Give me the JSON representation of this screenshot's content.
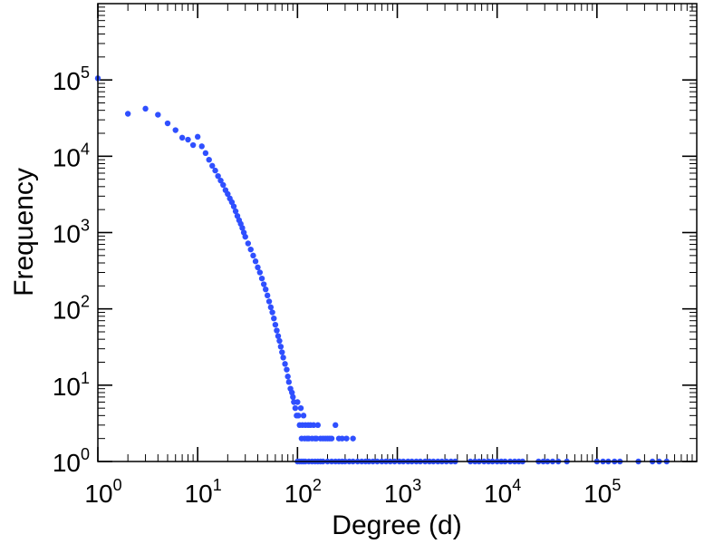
{
  "chart_data": {
    "type": "scatter",
    "title": "",
    "xlabel": "Degree (d)",
    "ylabel": "Frequency",
    "x_scale": "log",
    "y_scale": "log",
    "xlim": [
      1,
      1000000
    ],
    "ylim": [
      1,
      1000000
    ],
    "x_tick_labels": [
      {
        "base": "10",
        "exp": "0"
      },
      {
        "base": "10",
        "exp": "1"
      },
      {
        "base": "10",
        "exp": "2"
      },
      {
        "base": "10",
        "exp": "3"
      },
      {
        "base": "10",
        "exp": "4"
      },
      {
        "base": "10",
        "exp": "5"
      }
    ],
    "y_tick_labels": [
      {
        "base": "10",
        "exp": "0"
      },
      {
        "base": "10",
        "exp": "1"
      },
      {
        "base": "10",
        "exp": "2"
      },
      {
        "base": "10",
        "exp": "3"
      },
      {
        "base": "10",
        "exp": "4"
      },
      {
        "base": "10",
        "exp": "5"
      }
    ],
    "grid": false,
    "marker_color": "#2f4fff",
    "series": [
      {
        "points": [
          [
            1,
            105000
          ],
          [
            2,
            36000
          ],
          [
            3,
            42000
          ],
          [
            4,
            35000
          ],
          [
            5,
            27000
          ],
          [
            6,
            22000
          ],
          [
            7,
            17500
          ],
          [
            8,
            16500
          ],
          [
            9,
            14000
          ],
          [
            10,
            18000
          ],
          [
            11,
            13500
          ],
          [
            12,
            11000
          ],
          [
            13,
            9000
          ],
          [
            14,
            7500
          ],
          [
            15,
            6500
          ],
          [
            16,
            5500
          ],
          [
            17,
            4800
          ],
          [
            18,
            4200
          ],
          [
            19,
            3600
          ],
          [
            20,
            3200
          ],
          [
            21,
            2800
          ],
          [
            22,
            2500
          ],
          [
            23,
            2200
          ],
          [
            24,
            1900
          ],
          [
            25,
            1650
          ],
          [
            26,
            1450
          ],
          [
            27,
            1300
          ],
          [
            28,
            1150
          ],
          [
            29,
            1000
          ],
          [
            30,
            880
          ],
          [
            32,
            720
          ],
          [
            34,
            600
          ],
          [
            36,
            500
          ],
          [
            38,
            420
          ],
          [
            40,
            350
          ],
          [
            42,
            300
          ],
          [
            44,
            250
          ],
          [
            46,
            210
          ],
          [
            48,
            180
          ],
          [
            50,
            150
          ],
          [
            52,
            125
          ],
          [
            54,
            105
          ],
          [
            56,
            90
          ],
          [
            58,
            75
          ],
          [
            60,
            62
          ],
          [
            62,
            52
          ],
          [
            64,
            44
          ],
          [
            66,
            38
          ],
          [
            68,
            32
          ],
          [
            70,
            27
          ],
          [
            72,
            23
          ],
          [
            75,
            19
          ],
          [
            78,
            16
          ],
          [
            80,
            13
          ],
          [
            82,
            11
          ],
          [
            85,
            9
          ],
          [
            88,
            8
          ],
          [
            90,
            7
          ],
          [
            92,
            6
          ],
          [
            95,
            5
          ],
          [
            98,
            4
          ],
          [
            100,
            6
          ],
          [
            102,
            4
          ],
          [
            105,
            3
          ],
          [
            108,
            5
          ],
          [
            110,
            2
          ],
          [
            112,
            3
          ],
          [
            115,
            4
          ],
          [
            118,
            2
          ],
          [
            120,
            3
          ],
          [
            125,
            2
          ],
          [
            128,
            3
          ],
          [
            130,
            2
          ],
          [
            135,
            3
          ],
          [
            140,
            2
          ],
          [
            145,
            3
          ],
          [
            150,
            2
          ],
          [
            155,
            2
          ],
          [
            160,
            3
          ],
          [
            170,
            2
          ],
          [
            180,
            2
          ],
          [
            190,
            2
          ],
          [
            200,
            2
          ],
          [
            210,
            2
          ],
          [
            220,
            2
          ],
          [
            240,
            3
          ],
          [
            260,
            2
          ],
          [
            280,
            2
          ],
          [
            310,
            2
          ],
          [
            360,
            2
          ],
          [
            100,
            1
          ],
          [
            105,
            1
          ],
          [
            110,
            1
          ],
          [
            115,
            1
          ],
          [
            120,
            1
          ],
          [
            130,
            1
          ],
          [
            140,
            1
          ],
          [
            150,
            1
          ],
          [
            160,
            1
          ],
          [
            170,
            1
          ],
          [
            180,
            1
          ],
          [
            200,
            1
          ],
          [
            220,
            1
          ],
          [
            240,
            1
          ],
          [
            260,
            1
          ],
          [
            280,
            1
          ],
          [
            300,
            1
          ],
          [
            330,
            1
          ],
          [
            360,
            1
          ],
          [
            400,
            1
          ],
          [
            440,
            1
          ],
          [
            480,
            1
          ],
          [
            520,
            1
          ],
          [
            570,
            1
          ],
          [
            630,
            1
          ],
          [
            700,
            1
          ],
          [
            770,
            1
          ],
          [
            850,
            1
          ],
          [
            940,
            1
          ],
          [
            1050,
            1
          ],
          [
            1150,
            1
          ],
          [
            1280,
            1
          ],
          [
            1400,
            1
          ],
          [
            1550,
            1
          ],
          [
            1700,
            1
          ],
          [
            1900,
            1
          ],
          [
            2100,
            1
          ],
          [
            2300,
            1
          ],
          [
            2550,
            1
          ],
          [
            2800,
            1
          ],
          [
            3100,
            1
          ],
          [
            3450,
            1
          ],
          [
            3800,
            1
          ],
          [
            5400,
            1
          ],
          [
            6000,
            1
          ],
          [
            6600,
            1
          ],
          [
            7400,
            1
          ],
          [
            8200,
            1
          ],
          [
            9000,
            1
          ],
          [
            10000,
            1
          ],
          [
            11000,
            1
          ],
          [
            12000,
            1
          ],
          [
            13500,
            1
          ],
          [
            15000,
            1
          ],
          [
            16500,
            1
          ],
          [
            18000,
            1
          ],
          [
            26000,
            1
          ],
          [
            29000,
            1
          ],
          [
            32000,
            1
          ],
          [
            36000,
            1
          ],
          [
            41000,
            1
          ],
          [
            50000,
            1
          ],
          [
            100000,
            1
          ],
          [
            115000,
            1
          ],
          [
            130000,
            1
          ],
          [
            150000,
            1
          ],
          [
            170000,
            1
          ],
          [
            260000,
            1
          ],
          [
            360000,
            1
          ],
          [
            420000,
            1
          ],
          [
            500000,
            1
          ]
        ]
      }
    ]
  }
}
